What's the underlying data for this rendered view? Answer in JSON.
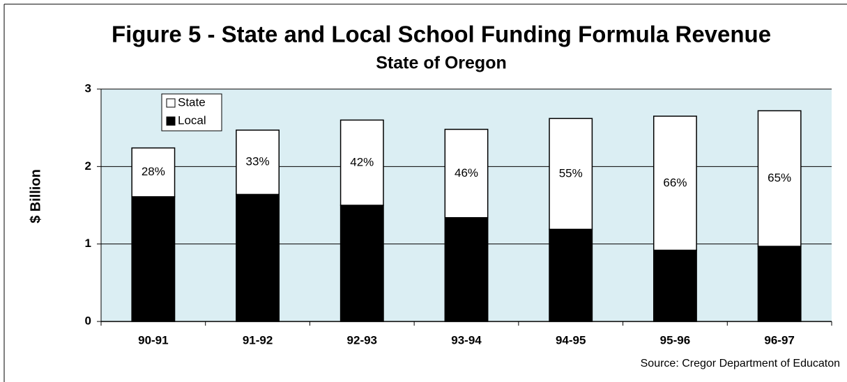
{
  "chart_data": {
    "type": "stacked-bar",
    "title": "Figure 5 - State and Local School Funding Formula Revenue",
    "subtitle": "State of Oregon",
    "y_label": "$ Billion",
    "source": "Source: Cregor Department of Educaton",
    "categories": [
      "90-91",
      "91-92",
      "92-93",
      "93-94",
      "94-95",
      "95-96",
      "96-97"
    ],
    "series": [
      {
        "name": "Local",
        "color": "#000000",
        "values": [
          1.61,
          1.64,
          1.5,
          1.34,
          1.19,
          0.92,
          0.97
        ]
      },
      {
        "name": "State",
        "color": "#ffffff",
        "values": [
          0.63,
          0.83,
          1.1,
          1.14,
          1.43,
          1.73,
          1.75
        ]
      }
    ],
    "state_share": {
      "values": [
        28,
        33,
        42,
        46,
        55,
        66,
        65
      ],
      "value_labels": [
        "28%",
        "33%",
        "42%",
        "46%",
        "55%",
        "66%",
        "65%"
      ]
    },
    "ylim": [
      0,
      3
    ],
    "yticks": [
      0,
      1,
      2,
      3
    ],
    "grid": true,
    "plot_background": "#dbeef3",
    "legend": "top-left"
  }
}
